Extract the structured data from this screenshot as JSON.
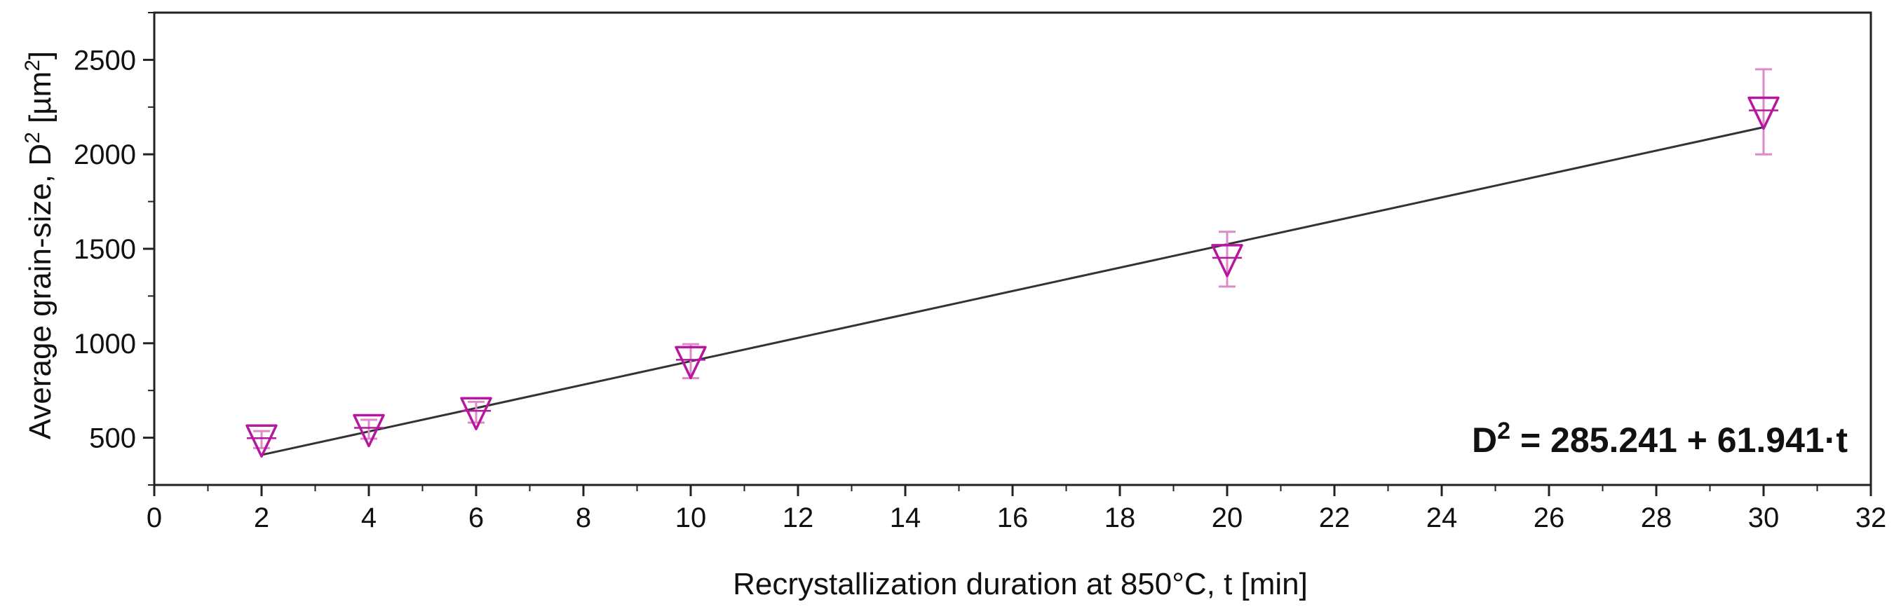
{
  "chart_data": {
    "type": "scatter",
    "title": "",
    "xlabel": "Recrystallization duration at 850°C, t [min]",
    "ylabel_parts": {
      "prefix": "Average grain-size, D",
      "sup1": "2",
      "unit_open": " [µm",
      "sup2": "2",
      "unit_close": "]"
    },
    "xlim": [
      0,
      32
    ],
    "ylim": [
      250,
      2750
    ],
    "x_ticks": [
      0,
      2,
      4,
      6,
      8,
      10,
      12,
      14,
      16,
      18,
      20,
      22,
      24,
      26,
      28,
      30,
      32
    ],
    "y_ticks": [
      500,
      1000,
      1500,
      2000,
      2500
    ],
    "series": [
      {
        "name": "Average grain-size",
        "marker": "triangle-down",
        "color": "#b5179e",
        "errorbar_color": "#e089c8",
        "points": [
          {
            "x": 2,
            "y": 490,
            "err": 45
          },
          {
            "x": 4,
            "y": 545,
            "err": 50
          },
          {
            "x": 6,
            "y": 635,
            "err": 55
          },
          {
            "x": 10,
            "y": 905,
            "err": 90
          },
          {
            "x": 20,
            "y": 1445,
            "err": 145
          },
          {
            "x": 30,
            "y": 2225,
            "err": 225
          }
        ]
      }
    ],
    "fit": {
      "intercept": 285.241,
      "slope": 61.941,
      "x_range": [
        2,
        30
      ],
      "color": "#333333",
      "label_prefix": "D",
      "label_sup": "2",
      "label_rest": " = 285.241 + 61.941·t"
    },
    "grid": false,
    "legend": "none"
  }
}
